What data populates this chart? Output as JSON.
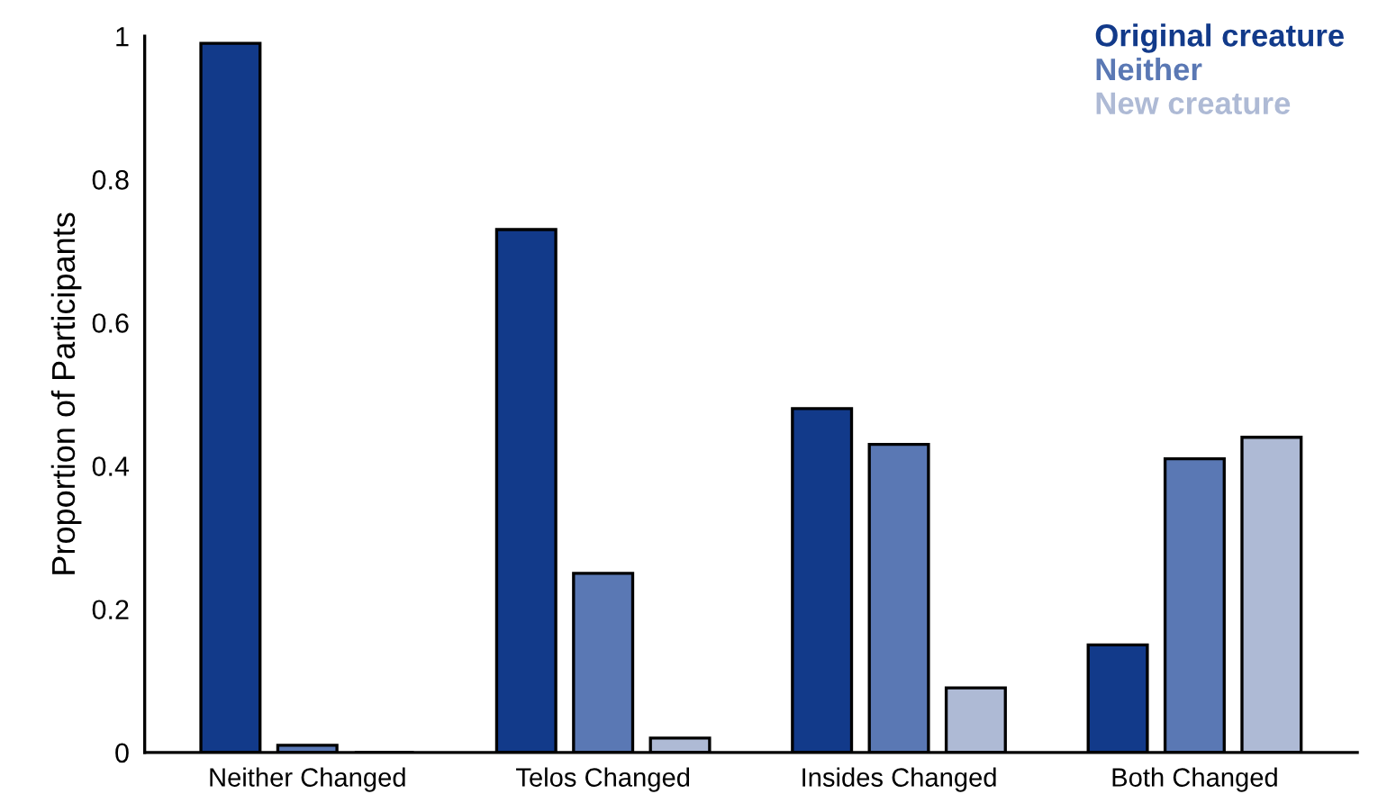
{
  "chart_data": {
    "type": "bar",
    "ylabel": "Proportion of Participants",
    "categories": [
      "Neither Changed",
      "Telos Changed",
      "Insides Changed",
      "Both Changed"
    ],
    "series": [
      {
        "name": "Original creature",
        "color": "#123a8a",
        "values": [
          0.99,
          0.73,
          0.48,
          0.15
        ]
      },
      {
        "name": "Neither",
        "color": "#5a78b4",
        "values": [
          0.01,
          0.25,
          0.43,
          0.41
        ]
      },
      {
        "name": "New creature",
        "color": "#aebad5",
        "values": [
          0,
          0.02,
          0.09,
          0.44
        ]
      }
    ],
    "ylim": [
      0,
      1
    ],
    "yticks": [
      0,
      0.2,
      0.4,
      0.6,
      0.8,
      1
    ],
    "grid": false,
    "legend": "top right"
  }
}
